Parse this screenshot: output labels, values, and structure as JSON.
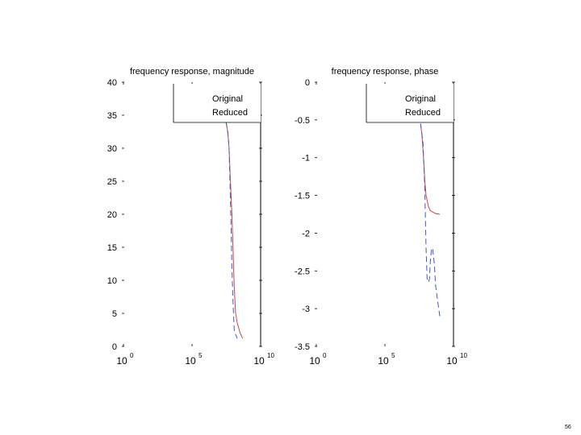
{
  "page": {
    "number": "56"
  },
  "chart_data": [
    {
      "type": "line",
      "title": "frequency response, magnitude",
      "xscale": "log",
      "xlim": [
        1,
        10000000000
      ],
      "ylim": [
        0,
        40
      ],
      "xticks": [
        {
          "value": 1,
          "base": "10",
          "exp": "0"
        },
        {
          "value": 100000,
          "base": "10",
          "exp": "5"
        },
        {
          "value": 10000000000,
          "base": "10",
          "exp": "10"
        }
      ],
      "yticks": [
        "0",
        "5",
        "10",
        "15",
        "20",
        "25",
        "30",
        "35",
        "40"
      ],
      "legend": {
        "placement": "top-right",
        "entries": [
          "Original",
          "Reduced"
        ]
      },
      "series": [
        {
          "name": "Original",
          "color": "#cc4444",
          "dash": "solid",
          "x": [
            30000000,
            40000000,
            50000000,
            60000000,
            80000000,
            100000000,
            120000000,
            150000000,
            200000000,
            250000000,
            300000000,
            400000000,
            500000000
          ],
          "y": [
            34,
            32.5,
            30,
            26,
            20,
            14,
            9,
            5,
            3.5,
            2.8,
            2.2,
            1.6,
            1.2
          ]
        },
        {
          "name": "Reduced",
          "color": "#4455cc",
          "dash": "dashed",
          "x": [
            30000000,
            40000000,
            50000000,
            60000000,
            70000000,
            80000000,
            100000000,
            120000000,
            150000000,
            200000000
          ],
          "y": [
            34,
            32.5,
            30,
            24,
            18,
            12,
            6,
            2.5,
            1.8,
            1.2
          ]
        }
      ]
    },
    {
      "type": "line",
      "title": "frequency response, phase",
      "xscale": "log",
      "xlim": [
        1,
        10000000000
      ],
      "ylim": [
        -3.5,
        0
      ],
      "xticks": [
        {
          "value": 1,
          "base": "10",
          "exp": "0"
        },
        {
          "value": 100000,
          "base": "10",
          "exp": "5"
        },
        {
          "value": 10000000000,
          "base": "10",
          "exp": "10"
        }
      ],
      "yticks": [
        "-3.5",
        "-3",
        "-2.5",
        "-2",
        "-1.5",
        "-1",
        "-0.5",
        "0"
      ],
      "legend": {
        "placement": "top-right",
        "entries": [
          "Original",
          "Reduced"
        ]
      },
      "series": [
        {
          "name": "Original",
          "color": "#cc4444",
          "dash": "solid",
          "x": [
            40000000,
            50000000,
            60000000,
            70000000,
            80000000,
            100000000,
            150000000,
            200000000,
            300000000,
            500000000,
            1000000000
          ],
          "y": [
            -0.55,
            -0.7,
            -0.9,
            -1.1,
            -1.3,
            -1.5,
            -1.65,
            -1.7,
            -1.72,
            -1.74,
            -1.75
          ]
        },
        {
          "name": "Reduced",
          "color": "#4455cc",
          "dash": "dashed",
          "x": [
            40000000,
            60000000,
            80000000,
            100000000,
            120000000,
            150000000,
            180000000,
            200000000,
            250000000,
            300000000,
            400000000,
            500000000,
            700000000,
            1000000000
          ],
          "y": [
            -0.55,
            -0.8,
            -1.4,
            -2.2,
            -2.6,
            -2.65,
            -2.6,
            -2.4,
            -2.2,
            -2.2,
            -2.4,
            -2.7,
            -2.9,
            -3.1
          ]
        }
      ]
    }
  ]
}
